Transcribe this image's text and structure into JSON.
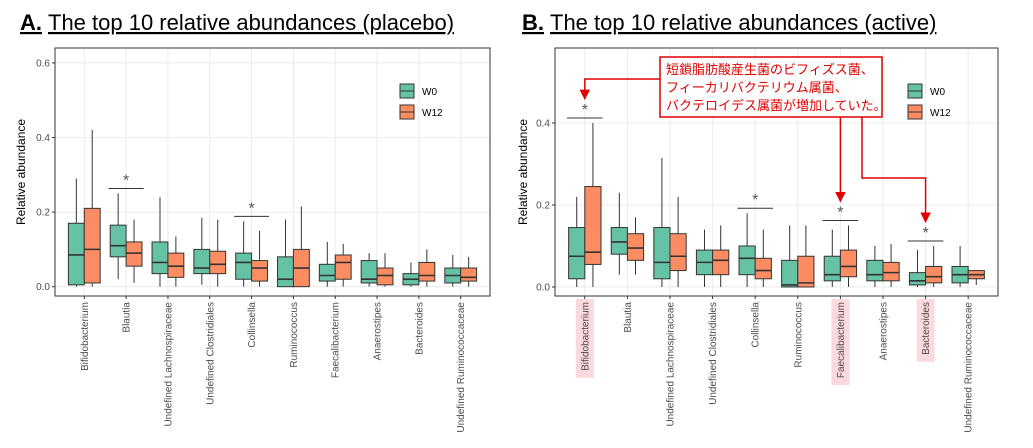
{
  "chart_data": [
    {
      "type": "box",
      "panel_label": "A.",
      "title": "The top 10 relative abundances (placebo)",
      "ylabel": "Relative abundance",
      "categories": [
        "Bifidobacterium",
        "Blautia",
        "Undefined Lachnospiraceae",
        "Undefined Clostridiales",
        "Collinsella",
        "Ruminococcus",
        "Faecalibacterium",
        "Anaerostipes",
        "Bacteroides",
        "Undefined Ruminococcaceae"
      ],
      "significance": [
        null,
        "*",
        null,
        null,
        "*",
        null,
        null,
        null,
        null,
        null
      ],
      "ylim": [
        -0.025,
        0.64
      ],
      "yticks": [
        {
          "value": 0,
          "label": "0.0"
        },
        {
          "value": 0.2,
          "label": "0.2"
        },
        {
          "value": 0.4,
          "label": "0.4"
        },
        {
          "value": 0.6,
          "label": "0.6"
        }
      ],
      "grid": true,
      "legend": "top-right",
      "series": [
        {
          "name": "W0",
          "color": "#66c2a5",
          "values": [
            {
              "low": 0,
              "q1": 0.005,
              "med": 0.085,
              "q3": 0.17,
              "high": 0.29
            },
            {
              "low": 0.02,
              "q1": 0.08,
              "med": 0.11,
              "q3": 0.165,
              "high": 0.25
            },
            {
              "low": 0,
              "q1": 0.035,
              "med": 0.065,
              "q3": 0.12,
              "high": 0.24
            },
            {
              "low": 0.005,
              "q1": 0.035,
              "med": 0.05,
              "q3": 0.1,
              "high": 0.185
            },
            {
              "low": 0,
              "q1": 0.02,
              "med": 0.065,
              "q3": 0.09,
              "high": 0.175
            },
            {
              "low": 0,
              "q1": 0,
              "med": 0.02,
              "q3": 0.08,
              "high": 0.18
            },
            {
              "low": 0,
              "q1": 0.015,
              "med": 0.03,
              "q3": 0.06,
              "high": 0.12
            },
            {
              "low": 0,
              "q1": 0.01,
              "med": 0.02,
              "q3": 0.07,
              "high": 0.09
            },
            {
              "low": 0,
              "q1": 0.005,
              "med": 0.02,
              "q3": 0.035,
              "high": 0.065
            },
            {
              "low": 0,
              "q1": 0.01,
              "med": 0.03,
              "q3": 0.05,
              "high": 0.085
            }
          ]
        },
        {
          "name": "W12",
          "color": "#fc8d62",
          "values": [
            {
              "low": 0,
              "q1": 0.01,
              "med": 0.1,
              "q3": 0.21,
              "high": 0.42
            },
            {
              "low": 0.01,
              "q1": 0.055,
              "med": 0.09,
              "q3": 0.12,
              "high": 0.18
            },
            {
              "low": 0,
              "q1": 0.025,
              "med": 0.055,
              "q3": 0.09,
              "high": 0.135
            },
            {
              "low": 0,
              "q1": 0.035,
              "med": 0.06,
              "q3": 0.095,
              "high": 0.18
            },
            {
              "low": 0,
              "q1": 0.015,
              "med": 0.05,
              "q3": 0.07,
              "high": 0.15
            },
            {
              "low": 0,
              "q1": 0,
              "med": 0.05,
              "q3": 0.1,
              "high": 0.215
            },
            {
              "low": 0,
              "q1": 0.02,
              "med": 0.065,
              "q3": 0.085,
              "high": 0.115
            },
            {
              "low": 0,
              "q1": 0.005,
              "med": 0.03,
              "q3": 0.05,
              "high": 0.09
            },
            {
              "low": 0,
              "q1": 0.015,
              "med": 0.03,
              "q3": 0.065,
              "high": 0.1
            },
            {
              "low": 0,
              "q1": 0.015,
              "med": 0.025,
              "q3": 0.05,
              "high": 0.08
            }
          ]
        }
      ]
    },
    {
      "type": "box",
      "panel_label": "B.",
      "title": "The top 10 relative abundances (active)",
      "ylabel": "Relative abundance",
      "categories": [
        "Bifidobacterium",
        "Blautia",
        "Undefined Lachnospiraceae",
        "Undefined Clostridiales",
        "Collinsella",
        "Ruminococcus",
        "Faecalibacterium",
        "Anaerostipes",
        "Bacteroides",
        "Undefined Ruminococcaceae"
      ],
      "significance": [
        "*",
        null,
        null,
        null,
        "*",
        null,
        "*",
        null,
        "*",
        null
      ],
      "highlight": [
        true,
        false,
        false,
        false,
        false,
        false,
        true,
        false,
        true,
        false
      ],
      "annotation": [
        "短鎖脂肪酸産生菌のビフィズス菌、",
        "フィーカリバクテリウム属菌、",
        "バクテロイデス属菌が増加していた。"
      ],
      "ylim": [
        -0.022,
        0.583
      ],
      "yticks": [
        {
          "value": 0,
          "label": "0.0"
        },
        {
          "value": 0.2,
          "label": "0.2"
        },
        {
          "value": 0.4,
          "label": "0.4"
        }
      ],
      "grid": true,
      "legend": "top-right",
      "series": [
        {
          "name": "W0",
          "color": "#66c2a5",
          "values": [
            {
              "low": 0,
              "q1": 0.02,
              "med": 0.075,
              "q3": 0.145,
              "high": 0.22
            },
            {
              "low": 0.03,
              "q1": 0.08,
              "med": 0.11,
              "q3": 0.145,
              "high": 0.23
            },
            {
              "low": 0,
              "q1": 0.02,
              "med": 0.06,
              "q3": 0.145,
              "high": 0.315
            },
            {
              "low": 0,
              "q1": 0.03,
              "med": 0.06,
              "q3": 0.09,
              "high": 0.14
            },
            {
              "low": 0,
              "q1": 0.03,
              "med": 0.07,
              "q3": 0.1,
              "high": 0.18
            },
            {
              "low": 0,
              "q1": 0,
              "med": 0.005,
              "q3": 0.065,
              "high": 0.15
            },
            {
              "low": 0,
              "q1": 0.015,
              "med": 0.03,
              "q3": 0.075,
              "high": 0.14
            },
            {
              "low": 0,
              "q1": 0.015,
              "med": 0.03,
              "q3": 0.065,
              "high": 0.1
            },
            {
              "low": 0,
              "q1": 0.005,
              "med": 0.015,
              "q3": 0.035,
              "high": 0.09
            },
            {
              "low": 0,
              "q1": 0.01,
              "med": 0.03,
              "q3": 0.05,
              "high": 0.1
            }
          ]
        },
        {
          "name": "W12",
          "color": "#fc8d62",
          "values": [
            {
              "low": 0,
              "q1": 0.055,
              "med": 0.085,
              "q3": 0.245,
              "high": 0.4
            },
            {
              "low": 0.03,
              "q1": 0.065,
              "med": 0.095,
              "q3": 0.13,
              "high": 0.17
            },
            {
              "low": 0,
              "q1": 0.04,
              "med": 0.075,
              "q3": 0.13,
              "high": 0.22
            },
            {
              "low": 0,
              "q1": 0.03,
              "med": 0.065,
              "q3": 0.09,
              "high": 0.15
            },
            {
              "low": 0,
              "q1": 0.02,
              "med": 0.04,
              "q3": 0.07,
              "high": 0.14
            },
            {
              "low": 0,
              "q1": 0,
              "med": 0.01,
              "q3": 0.075,
              "high": 0.15
            },
            {
              "low": 0,
              "q1": 0.025,
              "med": 0.05,
              "q3": 0.09,
              "high": 0.15
            },
            {
              "low": 0,
              "q1": 0.015,
              "med": 0.035,
              "q3": 0.06,
              "high": 0.105
            },
            {
              "low": 0,
              "q1": 0.01,
              "med": 0.025,
              "q3": 0.05,
              "high": 0.1
            },
            {
              "low": 0.005,
              "q1": 0.02,
              "med": 0.03,
              "q3": 0.04,
              "high": 0.04
            }
          ]
        }
      ]
    }
  ]
}
